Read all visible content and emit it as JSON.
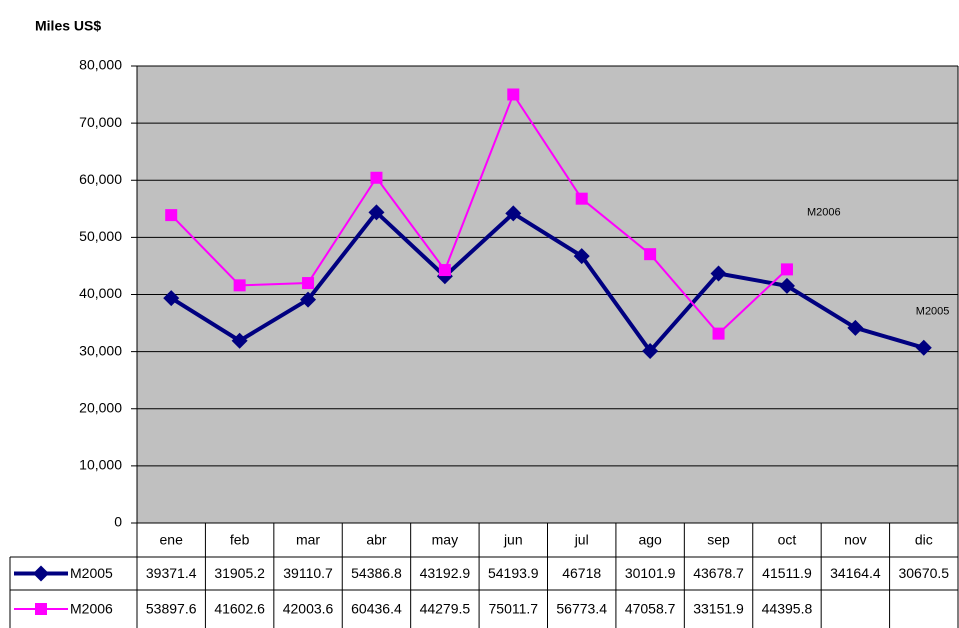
{
  "chart_data": {
    "type": "line",
    "y_label": "Miles US$",
    "categories": [
      "ene",
      "feb",
      "mar",
      "abr",
      "may",
      "jun",
      "jul",
      "ago",
      "sep",
      "oct",
      "nov",
      "dic"
    ],
    "series": [
      {
        "name": "M2005",
        "color": "#000080",
        "marker": "diamond",
        "values": [
          39371.4,
          31905.2,
          39110.7,
          54386.8,
          43192.9,
          54193.9,
          46718,
          30101.9,
          43678.7,
          41511.9,
          34164.4,
          30670.5
        ]
      },
      {
        "name": "M2006",
        "color": "#ff00ff",
        "marker": "square",
        "values": [
          53897.6,
          41602.6,
          42003.6,
          60436.4,
          44279.5,
          75011.7,
          56773.4,
          47058.7,
          33151.9,
          44395.8,
          null,
          null
        ]
      }
    ],
    "ylim": [
      0,
      80000
    ],
    "yticks": [
      0,
      {
        "value": 10000,
        "label": "10,000"
      },
      {
        "value": 20000,
        "label": "20,000"
      },
      {
        "value": 30000,
        "label": "30,000"
      },
      {
        "value": 40000,
        "label": "40,000"
      },
      {
        "value": 50000,
        "label": "50,000"
      },
      {
        "value": 60000,
        "label": "60,000"
      },
      {
        "value": 70000,
        "label": "70,000"
      },
      {
        "value": 80000,
        "label": "80,000"
      }
    ],
    "grid": true,
    "plot_background": "#c0c0c0",
    "data_table": true
  }
}
